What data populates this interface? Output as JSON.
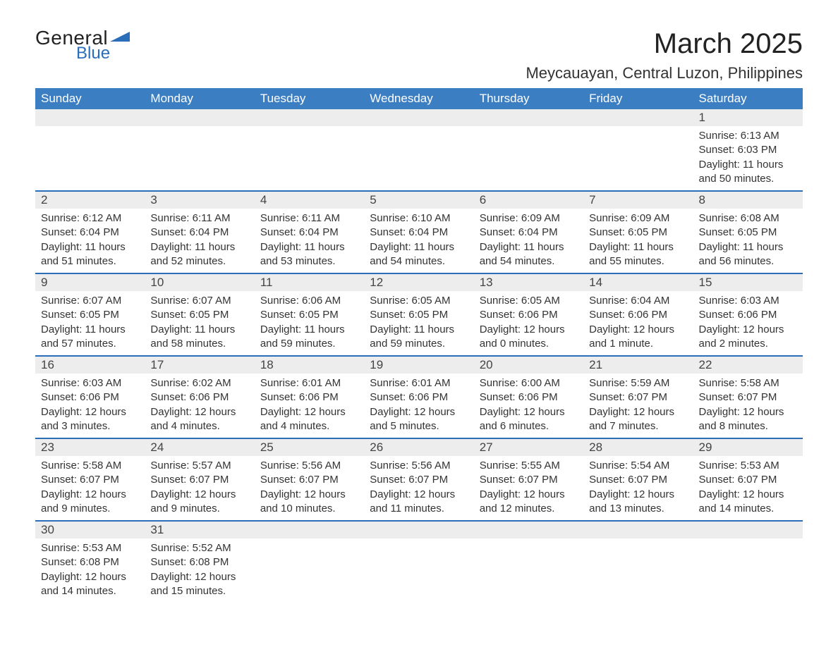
{
  "brand": {
    "word1": "General",
    "word2": "Blue",
    "flag_color": "#2a6db8"
  },
  "title": "March 2025",
  "location": "Meycauayan, Central Luzon, Philippines",
  "colors": {
    "header_bg": "#3c7ec2",
    "header_text": "#ffffff",
    "daynum_bg": "#ededed",
    "row_border": "#2a6db8",
    "body_text": "#333333",
    "page_bg": "#ffffff"
  },
  "day_headers": [
    "Sunday",
    "Monday",
    "Tuesday",
    "Wednesday",
    "Thursday",
    "Friday",
    "Saturday"
  ],
  "weeks": [
    {
      "nums": [
        "",
        "",
        "",
        "",
        "",
        "",
        "1"
      ],
      "details": [
        "",
        "",
        "",
        "",
        "",
        "",
        "Sunrise: 6:13 AM\nSunset: 6:03 PM\nDaylight: 11 hours and 50 minutes."
      ]
    },
    {
      "nums": [
        "2",
        "3",
        "4",
        "5",
        "6",
        "7",
        "8"
      ],
      "details": [
        "Sunrise: 6:12 AM\nSunset: 6:04 PM\nDaylight: 11 hours and 51 minutes.",
        "Sunrise: 6:11 AM\nSunset: 6:04 PM\nDaylight: 11 hours and 52 minutes.",
        "Sunrise: 6:11 AM\nSunset: 6:04 PM\nDaylight: 11 hours and 53 minutes.",
        "Sunrise: 6:10 AM\nSunset: 6:04 PM\nDaylight: 11 hours and 54 minutes.",
        "Sunrise: 6:09 AM\nSunset: 6:04 PM\nDaylight: 11 hours and 54 minutes.",
        "Sunrise: 6:09 AM\nSunset: 6:05 PM\nDaylight: 11 hours and 55 minutes.",
        "Sunrise: 6:08 AM\nSunset: 6:05 PM\nDaylight: 11 hours and 56 minutes."
      ]
    },
    {
      "nums": [
        "9",
        "10",
        "11",
        "12",
        "13",
        "14",
        "15"
      ],
      "details": [
        "Sunrise: 6:07 AM\nSunset: 6:05 PM\nDaylight: 11 hours and 57 minutes.",
        "Sunrise: 6:07 AM\nSunset: 6:05 PM\nDaylight: 11 hours and 58 minutes.",
        "Sunrise: 6:06 AM\nSunset: 6:05 PM\nDaylight: 11 hours and 59 minutes.",
        "Sunrise: 6:05 AM\nSunset: 6:05 PM\nDaylight: 11 hours and 59 minutes.",
        "Sunrise: 6:05 AM\nSunset: 6:06 PM\nDaylight: 12 hours and 0 minutes.",
        "Sunrise: 6:04 AM\nSunset: 6:06 PM\nDaylight: 12 hours and 1 minute.",
        "Sunrise: 6:03 AM\nSunset: 6:06 PM\nDaylight: 12 hours and 2 minutes."
      ]
    },
    {
      "nums": [
        "16",
        "17",
        "18",
        "19",
        "20",
        "21",
        "22"
      ],
      "details": [
        "Sunrise: 6:03 AM\nSunset: 6:06 PM\nDaylight: 12 hours and 3 minutes.",
        "Sunrise: 6:02 AM\nSunset: 6:06 PM\nDaylight: 12 hours and 4 minutes.",
        "Sunrise: 6:01 AM\nSunset: 6:06 PM\nDaylight: 12 hours and 4 minutes.",
        "Sunrise: 6:01 AM\nSunset: 6:06 PM\nDaylight: 12 hours and 5 minutes.",
        "Sunrise: 6:00 AM\nSunset: 6:06 PM\nDaylight: 12 hours and 6 minutes.",
        "Sunrise: 5:59 AM\nSunset: 6:07 PM\nDaylight: 12 hours and 7 minutes.",
        "Sunrise: 5:58 AM\nSunset: 6:07 PM\nDaylight: 12 hours and 8 minutes."
      ]
    },
    {
      "nums": [
        "23",
        "24",
        "25",
        "26",
        "27",
        "28",
        "29"
      ],
      "details": [
        "Sunrise: 5:58 AM\nSunset: 6:07 PM\nDaylight: 12 hours and 9 minutes.",
        "Sunrise: 5:57 AM\nSunset: 6:07 PM\nDaylight: 12 hours and 9 minutes.",
        "Sunrise: 5:56 AM\nSunset: 6:07 PM\nDaylight: 12 hours and 10 minutes.",
        "Sunrise: 5:56 AM\nSunset: 6:07 PM\nDaylight: 12 hours and 11 minutes.",
        "Sunrise: 5:55 AM\nSunset: 6:07 PM\nDaylight: 12 hours and 12 minutes.",
        "Sunrise: 5:54 AM\nSunset: 6:07 PM\nDaylight: 12 hours and 13 minutes.",
        "Sunrise: 5:53 AM\nSunset: 6:07 PM\nDaylight: 12 hours and 14 minutes."
      ]
    },
    {
      "nums": [
        "30",
        "31",
        "",
        "",
        "",
        "",
        ""
      ],
      "details": [
        "Sunrise: 5:53 AM\nSunset: 6:08 PM\nDaylight: 12 hours and 14 minutes.",
        "Sunrise: 5:52 AM\nSunset: 6:08 PM\nDaylight: 12 hours and 15 minutes.",
        "",
        "",
        "",
        "",
        ""
      ]
    }
  ]
}
